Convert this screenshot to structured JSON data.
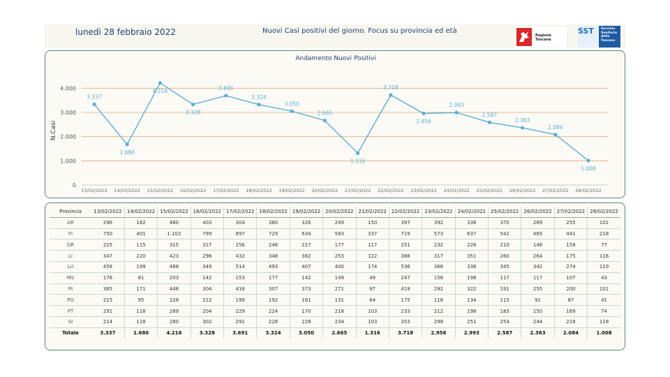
{
  "header": {
    "date": "lunedì 28 febbraio 2022",
    "subtitle": "Nuovi Casi positivi del giorno. Focus su provincia ed età",
    "logo_rt_text": "Regione Toscana",
    "logo_sst_mark": "SST",
    "logo_sst_text": [
      "Servizio",
      "Sanitario",
      "della",
      "Toscana"
    ]
  },
  "chart_data": {
    "type": "line",
    "title": "Andamento Nuovi Positivi",
    "ylabel": "N.Casi",
    "xlabel": "",
    "ylim": [
      0,
      4500
    ],
    "yticks": [
      0,
      1000,
      2000,
      3000,
      4000
    ],
    "ytick_labels": [
      "0",
      "1.000",
      "2.000",
      "3.000",
      "4.000"
    ],
    "grid": "horizontal",
    "line_color": "#5aaed6",
    "grid_color": "#e3a878",
    "x": [
      "13/02/2022",
      "14/02/2022",
      "15/02/2022",
      "16/02/2022",
      "17/02/2022",
      "18/02/2022",
      "19/02/2022",
      "20/02/2022",
      "21/02/2022",
      "22/02/2022",
      "23/02/2022",
      "24/02/2022",
      "25/02/2022",
      "26/02/2022",
      "27/02/2022",
      "28/02/2022"
    ],
    "values": [
      3337,
      1680,
      4216,
      3328,
      3691,
      3324,
      3050,
      2665,
      1316,
      3718,
      2956,
      2993,
      2587,
      2363,
      2084,
      1008
    ],
    "labels": [
      "3.337",
      "1.680",
      "4.216",
      "3.328",
      "3.691",
      "3.324",
      "3.050",
      "2.665",
      "1.316",
      "3.718",
      "2.956",
      "2.993",
      "2.587",
      "2.363",
      "2.084",
      "1.008"
    ],
    "label_pos": [
      "above",
      "below",
      "below",
      "below",
      "above",
      "above",
      "above",
      "above",
      "below",
      "above",
      "below",
      "above",
      "above",
      "above",
      "above",
      "below"
    ]
  },
  "table": {
    "headers": [
      "Provincia",
      "13/02/2022",
      "14/02/2022",
      "15/02/2022",
      "16/02/2022",
      "17/02/2022",
      "18/02/2022",
      "19/02/2022",
      "20/02/2022",
      "21/02/2022",
      "22/02/2022",
      "23/02/2022",
      "24/02/2022",
      "25/02/2022",
      "26/02/2022",
      "27/02/2022",
      "28/02/2022"
    ],
    "rows": [
      [
        "AR",
        "296",
        "162",
        "460",
        "403",
        "304",
        "380",
        "326",
        "249",
        "150",
        "397",
        "392",
        "338",
        "370",
        "289",
        "255",
        "101"
      ],
      [
        "FI",
        "750",
        "401",
        "1.102",
        "799",
        "897",
        "729",
        "634",
        "583",
        "337",
        "719",
        "573",
        "637",
        "542",
        "465",
        "441",
        "218"
      ],
      [
        "GR",
        "225",
        "115",
        "315",
        "317",
        "256",
        "246",
        "227",
        "177",
        "117",
        "251",
        "232",
        "226",
        "210",
        "146",
        "158",
        "77"
      ],
      [
        "LI",
        "347",
        "220",
        "423",
        "296",
        "432",
        "348",
        "382",
        "253",
        "122",
        "388",
        "317",
        "351",
        "260",
        "264",
        "175",
        "116"
      ],
      [
        "LU",
        "458",
        "199",
        "468",
        "349",
        "514",
        "493",
        "407",
        "400",
        "174",
        "536",
        "366",
        "338",
        "345",
        "342",
        "274",
        "119"
      ],
      [
        "MS",
        "176",
        "81",
        "203",
        "142",
        "153",
        "177",
        "142",
        "149",
        "49",
        "247",
        "156",
        "198",
        "117",
        "117",
        "107",
        "43"
      ],
      [
        "PI",
        "365",
        "171",
        "448",
        "304",
        "416",
        "307",
        "373",
        "271",
        "97",
        "419",
        "292",
        "322",
        "191",
        "255",
        "200",
        "101"
      ],
      [
        "PO",
        "215",
        "95",
        "228",
        "212",
        "199",
        "192",
        "161",
        "131",
        "64",
        "175",
        "118",
        "134",
        "115",
        "91",
        "87",
        "41"
      ],
      [
        "PT",
        "291",
        "118",
        "289",
        "204",
        "229",
        "224",
        "170",
        "218",
        "103",
        "233",
        "212",
        "198",
        "183",
        "150",
        "169",
        "74"
      ],
      [
        "SI",
        "214",
        "118",
        "280",
        "302",
        "291",
        "228",
        "228",
        "234",
        "103",
        "353",
        "298",
        "251",
        "254",
        "244",
        "218",
        "118"
      ]
    ],
    "total": [
      "Totale",
      "3.337",
      "1.680",
      "4.216",
      "3.328",
      "3.691",
      "3.324",
      "3.050",
      "2.665",
      "1.316",
      "3.718",
      "2.956",
      "2.993",
      "2.587",
      "2.363",
      "2.084",
      "1.008"
    ]
  }
}
